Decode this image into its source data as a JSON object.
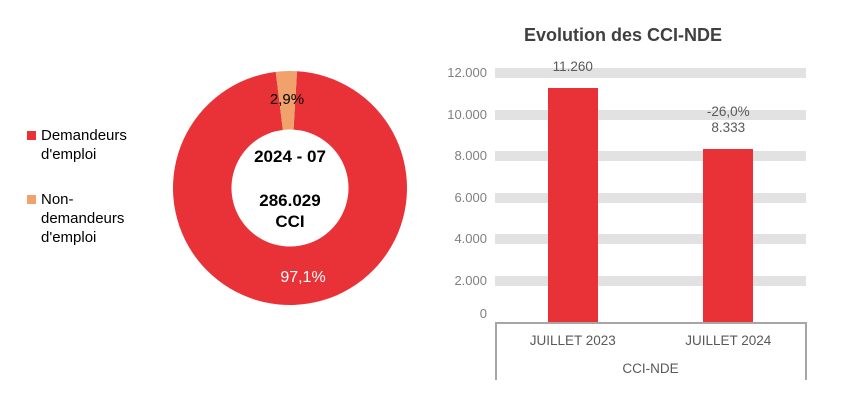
{
  "chart_data": [
    {
      "type": "pie",
      "subtype": "donut",
      "period_label": "2024 - 07",
      "center_value": "286.029",
      "center_unit": "CCI",
      "slices": [
        {
          "name": "Demandeurs d'emploi",
          "pct": 97.1,
          "label": "97,1%",
          "color": "#E93238"
        },
        {
          "name": "Non-demandeurs d'emploi",
          "pct": 2.9,
          "label": "2,9%",
          "color": "#F1A16C"
        }
      ],
      "legend": [
        {
          "name": "Demandeurs d'emploi",
          "lines": [
            "Demandeurs",
            "d'emploi"
          ],
          "color": "#E93238"
        },
        {
          "name": "Non-demandeurs d'emploi",
          "lines": [
            "Non-",
            "demandeurs",
            "d'emploi"
          ],
          "color": "#F1A16C"
        }
      ],
      "legend_position": "left"
    },
    {
      "type": "bar",
      "title": "Evolution des CCI-NDE",
      "categories": [
        "JUILLET 2023",
        "JUILLET 2024"
      ],
      "values": [
        11260,
        8333
      ],
      "value_labels": [
        [
          "11.260"
        ],
        [
          "-26,0%",
          "8.333"
        ]
      ],
      "x_axis_group": "CCI-NDE",
      "xlabel": "",
      "ylabel": "",
      "ylim": [
        0,
        12000
      ],
      "y_tick_step": 2000,
      "y_ticks": [
        {
          "value": 12000,
          "label": "12.000"
        },
        {
          "value": 10000,
          "label": "10.000"
        },
        {
          "value": 8000,
          "label": "8.000"
        },
        {
          "value": 6000,
          "label": "6.000"
        },
        {
          "value": 4000,
          "label": "4.000"
        },
        {
          "value": 2000,
          "label": "2.000"
        },
        {
          "value": 0,
          "label": "0"
        }
      ],
      "grid": "horizontal-bands",
      "legend_position": "none",
      "bar_color": "#E93238",
      "colors": {
        "grid_band": "#E2E2E2",
        "axis_border": "#A6A6A6",
        "tick_text": "#7F7F7F",
        "label_text": "#595959",
        "title_text": "#404040"
      }
    }
  ]
}
